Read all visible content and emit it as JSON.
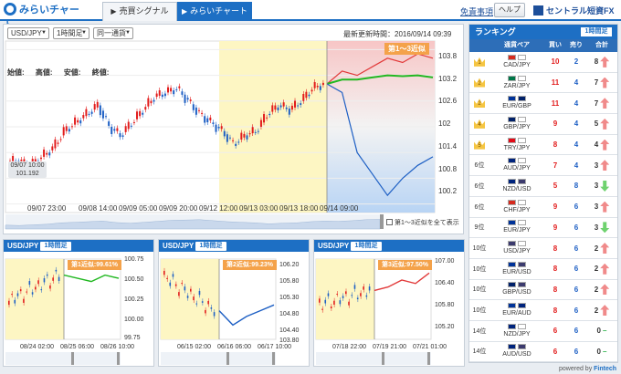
{
  "header": {
    "logo_text": "みらいチャート",
    "tabs": [
      {
        "label": "売買シグナル",
        "active": false
      },
      {
        "label": "みらいチャート",
        "active": true
      }
    ],
    "disclaimer": "免責事項",
    "help": "ヘルプ",
    "brand": "セントラル短資FX"
  },
  "main_chart": {
    "pair_select": "USD/JPY",
    "timeframe_select": "1時間足",
    "period_select": "同一通貨",
    "updated_label": "最新更新時間：",
    "updated_value": "2016/09/14 09:39",
    "ohlc_labels": [
      "始値:",
      "高値:",
      "安値:",
      "終値:"
    ],
    "badge": "第1～3近似",
    "price_info_date": "09/07 10:00",
    "price_info_value": "101.192",
    "show_all_label": "第1～3近似を全て表示",
    "colors": {
      "buy": "#e21c1c",
      "sell": "#1d5fc4",
      "accent": "#1d6fc4",
      "highlight_yellow": "#fdf6c3",
      "forecast_green": "#22b822"
    }
  },
  "chart_data": [
    {
      "type": "line",
      "title": "USD/JPY 1時間足",
      "x_ticks": [
        "09/07 23:00",
        "09/08 14:00",
        "09/09 05:00",
        "09/09 20:00",
        "09/12 12:00",
        "09/13 03:00",
        "09/13 18:00",
        "09/14 09:00"
      ],
      "y_ticks": [
        103.8,
        103.2,
        102.6,
        102.0,
        101.4,
        100.8,
        100.2
      ],
      "ylim": [
        100.0,
        104.0
      ],
      "series": [
        {
          "values": [
            101.2,
            101.1,
            101.3,
            101.5,
            101.9,
            102.1,
            102.3,
            102.5,
            102.0,
            101.8,
            102.1,
            102.4,
            102.7,
            102.8,
            102.9,
            102.6,
            102.3,
            102.1,
            101.9,
            101.6,
            101.8,
            101.9,
            102.3,
            102.5,
            102.4,
            102.6,
            102.9,
            103.0
          ]
        },
        {
          "values": [
            103.0,
            103.3,
            103.2,
            103.4,
            103.6,
            103.5,
            103.7,
            103.6
          ]
        },
        {
          "values": [
            103.0,
            103.1,
            103.1,
            103.15,
            103.2,
            103.18,
            103.2,
            103.15
          ]
        },
        {
          "values": [
            103.0,
            102.8,
            101.4,
            100.9,
            100.4,
            100.8,
            101.1,
            101.3
          ]
        }
      ],
      "legend": "none"
    },
    {
      "type": "line",
      "title": "USD/JPY 1時間足",
      "badge": "第1近似:99.61%",
      "x_ticks": [
        "08/24 02:00",
        "08/25 06:00",
        "08/26 10:00"
      ],
      "y_ticks": [
        100.75,
        100.5,
        100.25,
        100.0,
        99.75
      ],
      "ylim": [
        99.6,
        100.85
      ],
      "series": [
        {
          "values": [
            100.2,
            100.4,
            100.3,
            100.5,
            100.45,
            100.6,
            100.55,
            100.5,
            100.6,
            100.55
          ]
        }
      ]
    },
    {
      "type": "line",
      "title": "USD/JPY 1時間足",
      "badge": "第2近似:99.23%",
      "x_ticks": [
        "06/15 02:00",
        "06/16 06:00",
        "06/17 10:00"
      ],
      "y_ticks": [
        106.2,
        105.8,
        105.3,
        104.8,
        104.4,
        103.8
      ],
      "ylim": [
        103.6,
        106.4
      ],
      "series": [
        {
          "values": [
            105.8,
            105.9,
            105.7,
            105.2,
            104.6,
            104.1,
            104.4,
            104.6,
            104.8
          ]
        }
      ]
    },
    {
      "type": "line",
      "title": "USD/JPY 1時間足",
      "badge": "第3近似:97.50%",
      "x_ticks": [
        "07/18 22:00",
        "07/19 21:00",
        "07/21 01:00"
      ],
      "y_ticks": [
        107.0,
        106.4,
        105.8,
        105.2
      ],
      "ylim": [
        104.9,
        107.2
      ],
      "series": [
        {
          "values": [
            105.9,
            106.0,
            106.2,
            106.1,
            106.3,
            106.4,
            106.6,
            106.5,
            106.8
          ]
        }
      ]
    }
  ],
  "sub_charts": [
    {
      "pair": "USD/JPY",
      "timeframe": "1時間足",
      "badge": "第1近似:99.61%",
      "y_labels": [
        "100.75",
        "100.50",
        "100.25",
        "100.00",
        "99.75"
      ],
      "x_labels": [
        "08/24 02:00",
        "08/25 06:00",
        "08/26 10:00"
      ]
    },
    {
      "pair": "USD/JPY",
      "timeframe": "1時間足",
      "badge": "第2近似:99.23%",
      "y_labels": [
        "106.20",
        "105.80",
        "105.30",
        "104.80",
        "104.40",
        "103.80"
      ],
      "x_labels": [
        "06/15 02:00",
        "06/16 06:00",
        "06/17 10:00"
      ]
    },
    {
      "pair": "USD/JPY",
      "timeframe": "1時間足",
      "badge": "第3近似:97.50%",
      "y_labels": [
        "107.00",
        "106.40",
        "105.80",
        "105.20"
      ],
      "x_labels": [
        "07/18 22:00",
        "07/19 21:00",
        "07/21 01:00"
      ]
    }
  ],
  "ranking": {
    "title": "ランキング",
    "timeframe": "1時間足",
    "columns": [
      "通貨ペア",
      "買い",
      "売り",
      "合計"
    ],
    "rows": [
      {
        "rank": "1",
        "pair": "CAD/JPY",
        "buy": "10",
        "sell": "2",
        "total": "8",
        "dir": "up"
      },
      {
        "rank": "2",
        "pair": "ZAR/JPY",
        "buy": "11",
        "sell": "4",
        "total": "7",
        "dir": "up"
      },
      {
        "rank": "2",
        "pair": "EUR/GBP",
        "buy": "11",
        "sell": "4",
        "total": "7",
        "dir": "up"
      },
      {
        "rank": "4",
        "pair": "GBP/JPY",
        "buy": "9",
        "sell": "4",
        "total": "5",
        "dir": "up"
      },
      {
        "rank": "5",
        "pair": "TRY/JPY",
        "buy": "8",
        "sell": "4",
        "total": "4",
        "dir": "up"
      },
      {
        "rank": "6位",
        "pair": "AUD/JPY",
        "buy": "7",
        "sell": "4",
        "total": "3",
        "dir": "up"
      },
      {
        "rank": "6位",
        "pair": "NZD/USD",
        "buy": "5",
        "sell": "8",
        "total": "3",
        "dir": "down"
      },
      {
        "rank": "6位",
        "pair": "CHF/JPY",
        "buy": "9",
        "sell": "6",
        "total": "3",
        "dir": "up"
      },
      {
        "rank": "9位",
        "pair": "EUR/JPY",
        "buy": "9",
        "sell": "6",
        "total": "3",
        "dir": "down"
      },
      {
        "rank": "10位",
        "pair": "USD/JPY",
        "buy": "8",
        "sell": "6",
        "total": "2",
        "dir": "up"
      },
      {
        "rank": "10位",
        "pair": "EUR/USD",
        "buy": "8",
        "sell": "6",
        "total": "2",
        "dir": "up"
      },
      {
        "rank": "10位",
        "pair": "GBP/USD",
        "buy": "8",
        "sell": "6",
        "total": "2",
        "dir": "up"
      },
      {
        "rank": "10位",
        "pair": "EUR/AUD",
        "buy": "8",
        "sell": "6",
        "total": "2",
        "dir": "up"
      },
      {
        "rank": "14位",
        "pair": "NZD/JPY",
        "buy": "6",
        "sell": "6",
        "total": "0",
        "dir": "flat"
      },
      {
        "rank": "14位",
        "pair": "AUD/USD",
        "buy": "6",
        "sell": "6",
        "total": "0",
        "dir": "flat"
      }
    ]
  },
  "footer": {
    "powered": "powered by",
    "brand": "Fintech"
  }
}
